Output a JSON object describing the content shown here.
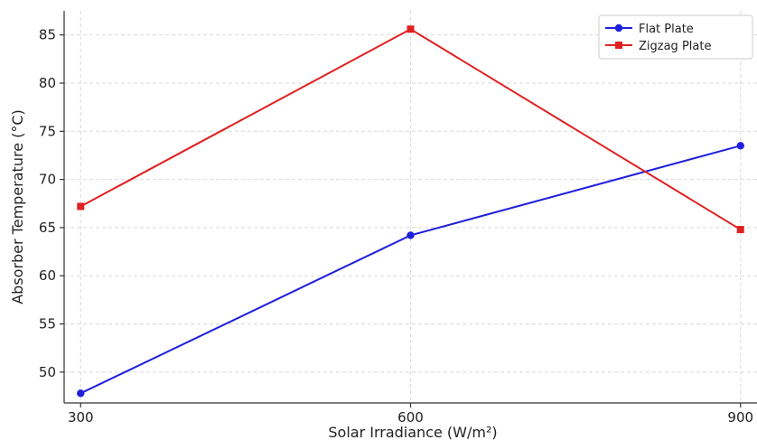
{
  "chart_data": {
    "type": "line",
    "xlabel": "Solar Irradiance (W/m²)",
    "ylabel": "Absorber Temperature (°C)",
    "x": [
      300,
      600,
      900
    ],
    "xticks": [
      "300",
      "600",
      "900"
    ],
    "yticks": [
      "50",
      "55",
      "60",
      "65",
      "70",
      "75",
      "80",
      "85"
    ],
    "xlim": [
      285,
      915
    ],
    "ylim": [
      46.8,
      87.5
    ],
    "grid": true,
    "legend_position": "top-right",
    "series": [
      {
        "name": "Flat Plate",
        "values": [
          47.8,
          64.2,
          73.5
        ],
        "color": "#1f1fdd",
        "marker": "circle"
      },
      {
        "name": "Zigzag Plate",
        "values": [
          67.2,
          85.6,
          64.8
        ],
        "color": "#e02020",
        "marker": "square"
      }
    ]
  }
}
